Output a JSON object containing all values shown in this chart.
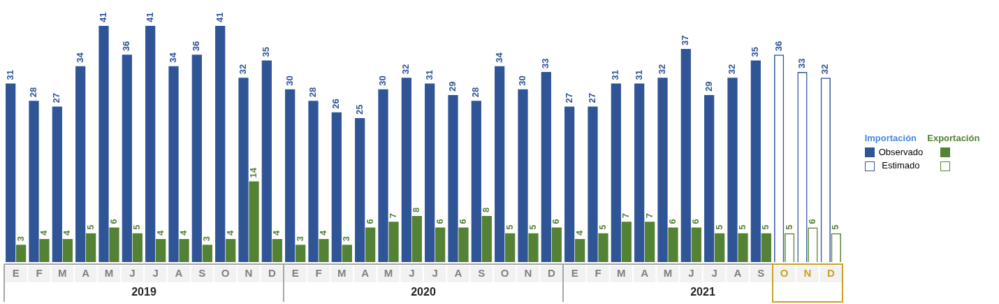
{
  "chart_data": {
    "type": "bar",
    "categories": [
      "E",
      "F",
      "M",
      "A",
      "M",
      "J",
      "J",
      "A",
      "S",
      "O",
      "N",
      "D",
      "E",
      "F",
      "M",
      "A",
      "M",
      "J",
      "J",
      "A",
      "S",
      "O",
      "N",
      "D",
      "E",
      "F",
      "M",
      "A",
      "M",
      "J",
      "J",
      "A",
      "S",
      "O",
      "N",
      "D"
    ],
    "series": [
      {
        "name": "Observado",
        "color": "#2f5597",
        "values": [
          31,
          28,
          27,
          34,
          41,
          36,
          41,
          34,
          36,
          41,
          32,
          35,
          30,
          28,
          26,
          25,
          30,
          32,
          31,
          29,
          28,
          34,
          30,
          33,
          27,
          27,
          31,
          31,
          32,
          37,
          29,
          32,
          35,
          null,
          null,
          null
        ]
      },
      {
        "name": "Estimado",
        "color": "#2f5597",
        "values": [
          null,
          null,
          null,
          null,
          null,
          null,
          null,
          null,
          null,
          null,
          null,
          null,
          null,
          null,
          null,
          null,
          null,
          null,
          null,
          null,
          null,
          null,
          null,
          null,
          null,
          null,
          null,
          null,
          null,
          null,
          null,
          null,
          null,
          36,
          33,
          32
        ]
      },
      {
        "color": "#548235",
        "values": [
          3,
          4,
          4,
          5,
          6,
          5,
          4,
          4,
          3,
          4,
          14,
          4,
          3,
          4,
          3,
          6,
          7,
          8,
          6,
          6,
          8,
          5,
          5,
          6,
          4,
          5,
          7,
          7,
          6,
          6,
          5,
          5,
          5,
          null,
          null,
          null
        ]
      },
      {
        "color": "#548235",
        "values": [
          null,
          null,
          null,
          null,
          null,
          null,
          null,
          null,
          null,
          null,
          null,
          null,
          null,
          null,
          null,
          null,
          null,
          null,
          null,
          null,
          null,
          null,
          null,
          null,
          null,
          null,
          null,
          null,
          null,
          null,
          null,
          null,
          null,
          5,
          6,
          5
        ]
      }
    ],
    "annotations": [
      "Importación",
      "Exportación",
      "2019",
      "2020",
      "2021"
    ],
    "legend": "right",
    "data_labels": true
  }
}
